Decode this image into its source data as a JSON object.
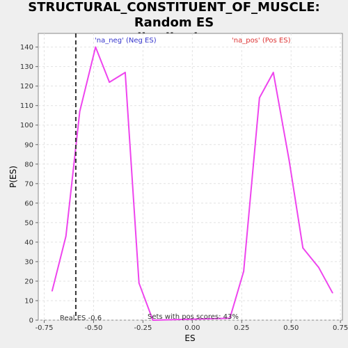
{
  "chart_data": {
    "type": "line",
    "title_lines": [
      "STRUCTURAL_CONSTITUENT_OF_MUSCLE: Random ES",
      "distribution"
    ],
    "xlabel": "ES",
    "ylabel": "P(ES)",
    "xlim": [
      -0.78,
      0.76
    ],
    "ylim": [
      0,
      147
    ],
    "x_ticks": [
      -0.75,
      -0.5,
      -0.25,
      0.0,
      0.25,
      0.5,
      0.75
    ],
    "x_tick_labels": [
      "-0.75",
      "-0.50",
      "-0.25",
      "0.00",
      "0.25",
      "0.50",
      "0.75"
    ],
    "y_ticks": [
      0,
      10,
      20,
      30,
      40,
      50,
      60,
      70,
      80,
      90,
      100,
      110,
      120,
      130,
      140
    ],
    "y_tick_labels": [
      "0",
      "10",
      "20",
      "30",
      "40",
      "50",
      "60",
      "70",
      "80",
      "90",
      "100",
      "110",
      "120",
      "130",
      "140"
    ],
    "grid": true,
    "series": [
      {
        "color": "#ee44ee",
        "x": [
          -0.71,
          -0.64,
          -0.57,
          -0.49,
          -0.42,
          -0.34,
          -0.27,
          -0.2,
          0.19,
          0.26,
          0.34,
          0.41,
          0.49,
          0.56,
          0.64,
          0.71
        ],
        "y": [
          15,
          43,
          107,
          140,
          122,
          127,
          19,
          0,
          1,
          25,
          114,
          127,
          82,
          37,
          27,
          14
        ]
      }
    ],
    "real_es": -0.59,
    "annotations": {
      "neg_label": "'na_neg' (Neg ES)",
      "pos_label": "'na_pos' (Pos ES)",
      "real_es_label": "Real ES -0.6",
      "pos_scores_label": "Sets with pos scores: 43%"
    },
    "colors": {
      "neg_label": "#3333cc",
      "pos_label": "#dd3333",
      "real_es_line": "#333333"
    }
  }
}
